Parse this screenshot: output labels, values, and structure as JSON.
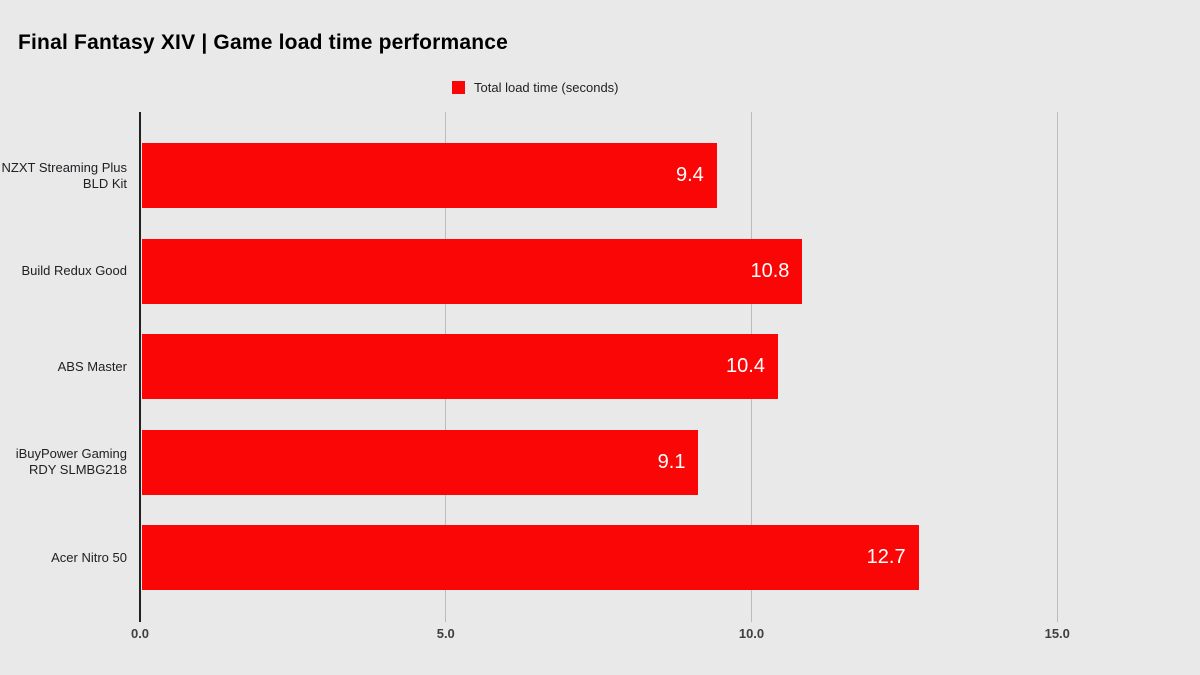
{
  "title": "Final Fantasy XIV | Game load time performance",
  "legend": {
    "label": "Total load time (seconds)",
    "swatch_color": "#fa0606"
  },
  "colors": {
    "background": "#e9e9e9",
    "bar": "#fa0606",
    "value_label": "#ffffff",
    "gridline": "#bcbcbc",
    "zero_axis": "#212121"
  },
  "chart_data": {
    "type": "bar",
    "orientation": "horizontal",
    "title": "Final Fantasy XIV | Game load time performance",
    "series_name": "Total load time (seconds)",
    "categories": [
      "NZXT Streaming Plus BLD Kit",
      "Build Redux Good",
      "ABS Master",
      "iBuyPower Gaming RDY SLMBG218",
      "Acer Nitro 50"
    ],
    "values": [
      9.4,
      10.8,
      10.4,
      9.1,
      12.7
    ],
    "value_labels": [
      "9.4",
      "10.8",
      "10.4",
      "9.1",
      "12.7"
    ],
    "xlabel": "",
    "ylabel": "",
    "x_ticks": [
      0,
      5,
      10,
      15
    ],
    "x_tick_labels": [
      "0.0",
      "5.0",
      "10.0",
      "15.0"
    ],
    "xlim": [
      0,
      16.7
    ],
    "grid": true,
    "legend_position": "top-center",
    "bar_color": "#fa0606",
    "value_label_color": "#ffffff"
  }
}
